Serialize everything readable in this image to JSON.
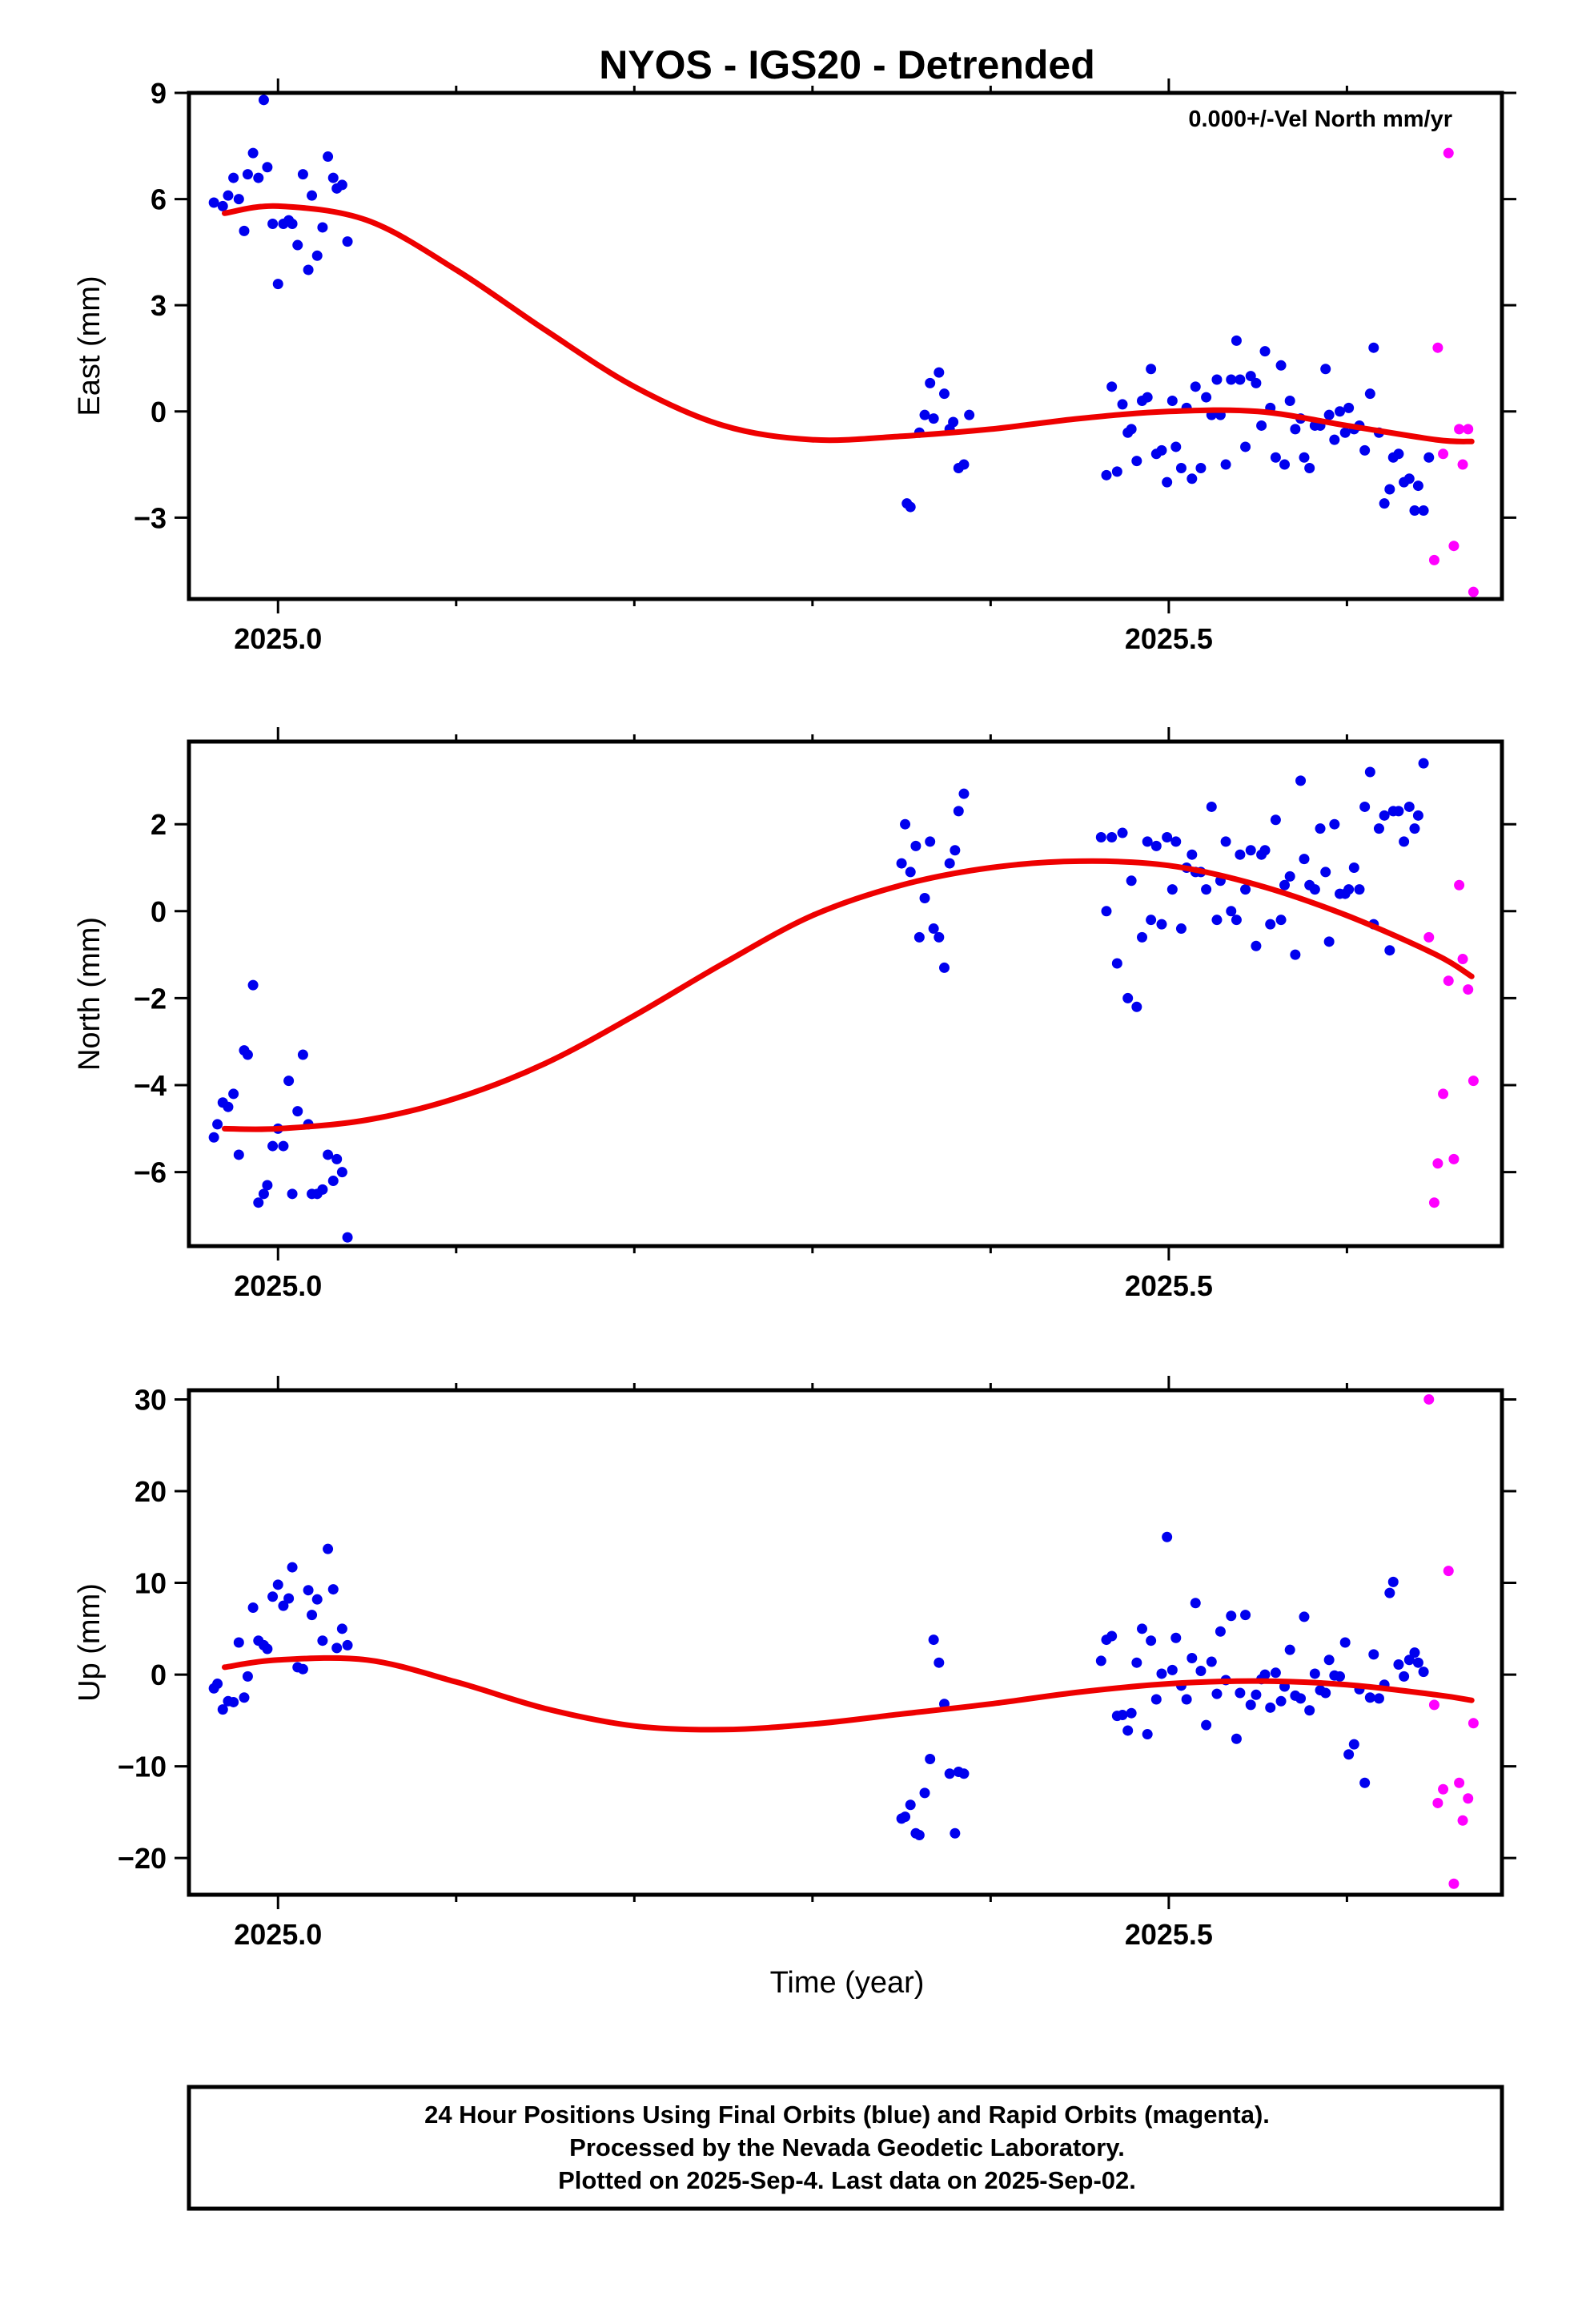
{
  "title": "NYOS - IGS20 - Detrended",
  "xlabel": "Time (year)",
  "footer": [
    "24 Hour Positions Using Final Orbits (blue) and Rapid Orbits (magenta).",
    "Processed by the Nevada Geodetic Laboratory.",
    "Plotted on 2025-Sep-4. Last data on 2025-Sep-02."
  ],
  "colors": {
    "final": "#0000ee",
    "rapid": "#ff00ff",
    "fit": "#ee0000",
    "frame": "#000000"
  },
  "chart_data": [
    {
      "type": "scatter",
      "ylabel": "East (mm)",
      "annotation": "0.000+/-Vel North mm/yr",
      "xlim": [
        2024.95,
        2025.687
      ],
      "ylim": [
        -5.3,
        9.0
      ],
      "xticks": [
        2025.0,
        2025.5
      ],
      "xtick_labels": [
        "2025.0",
        "2025.5"
      ],
      "xminor": [
        2025.1,
        2025.2,
        2025.3,
        2025.4,
        2025.6
      ],
      "yticks": [
        -3,
        0,
        3,
        6,
        9
      ],
      "ytick_labels": [
        "−3",
        "0",
        "3",
        "6",
        "9"
      ],
      "series": [
        {
          "kind": "final",
          "x": [
            2024.964,
            2024.969,
            2024.972,
            2024.975,
            2024.978,
            2024.981,
            2024.983,
            2024.986,
            2024.989,
            2024.992,
            2024.994,
            2024.997,
            2025.0,
            2025.003,
            2025.006,
            2025.008,
            2025.011,
            2025.014,
            2025.017,
            2025.019,
            2025.022,
            2025.025,
            2025.028,
            2025.031,
            2025.033,
            2025.036,
            2025.039,
            2025.353,
            2025.355,
            2025.36,
            2025.363,
            2025.366,
            2025.368,
            2025.371,
            2025.374,
            2025.377,
            2025.379,
            2025.382,
            2025.385,
            2025.388,
            2025.465,
            2025.468,
            2025.471,
            2025.474,
            2025.477,
            2025.479,
            2025.482,
            2025.485,
            2025.488,
            2025.49,
            2025.493,
            2025.496,
            2025.499,
            2025.502,
            2025.504,
            2025.507,
            2025.51,
            2025.513,
            2025.515,
            2025.518,
            2025.521,
            2025.524,
            2025.527,
            2025.529,
            2025.532,
            2025.535,
            2025.538,
            2025.54,
            2025.543,
            2025.546,
            2025.549,
            2025.552,
            2025.554,
            2025.557,
            2025.56,
            2025.563,
            2025.565,
            2025.568,
            2025.571,
            2025.574,
            2025.576,
            2025.579,
            2025.582,
            2025.585,
            2025.588,
            2025.59,
            2025.593,
            2025.596,
            2025.599,
            2025.601,
            2025.604,
            2025.607,
            2025.61,
            2025.613,
            2025.615,
            2025.618,
            2025.621,
            2025.624,
            2025.626,
            2025.629,
            2025.632,
            2025.635,
            2025.638,
            2025.64,
            2025.643,
            2025.646
          ],
          "y": [
            5.9,
            5.8,
            6.1,
            6.6,
            6.0,
            5.1,
            6.7,
            7.3,
            6.6,
            8.8,
            6.9,
            5.3,
            3.6,
            5.3,
            5.4,
            5.3,
            4.7,
            6.7,
            4.0,
            6.1,
            4.4,
            5.2,
            7.2,
            6.6,
            6.3,
            6.4,
            4.8,
            -2.6,
            -2.7,
            -0.6,
            -0.1,
            0.8,
            -0.2,
            1.1,
            0.5,
            -0.5,
            -0.3,
            -1.6,
            -1.5,
            -0.1,
            -1.8,
            0.7,
            -1.7,
            0.2,
            -0.6,
            -0.5,
            -1.4,
            0.3,
            0.4,
            1.2,
            -1.2,
            -1.1,
            -2.0,
            0.3,
            -1.0,
            -1.6,
            0.1,
            -1.9,
            0.7,
            -1.6,
            0.4,
            -0.1,
            0.9,
            -0.1,
            -1.5,
            0.9,
            2.0,
            0.9,
            -1.0,
            1.0,
            0.8,
            -0.4,
            1.7,
            0.1,
            -1.3,
            1.3,
            -1.5,
            0.3,
            -0.5,
            -0.2,
            -1.3,
            -1.6,
            -0.4,
            -0.4,
            1.2,
            -0.1,
            -0.8,
            0.0,
            -0.6,
            0.1,
            -0.5,
            -0.4,
            -1.1,
            0.5,
            1.8,
            -0.6,
            -2.6,
            -2.2,
            -1.3,
            -1.2,
            -2.0,
            -1.9,
            -2.8,
            -2.1,
            -2.8,
            -1.3
          ]
        },
        {
          "kind": "rapid",
          "x": [
            2025.649,
            2025.651,
            2025.654,
            2025.657,
            2025.66,
            2025.663,
            2025.665,
            2025.668,
            2025.671
          ],
          "y": [
            -4.2,
            1.8,
            -1.2,
            7.3,
            -3.8,
            -0.5,
            -1.5,
            -0.5,
            -5.1
          ]
        }
      ],
      "fit": {
        "x": [
          2024.97,
          2025.0,
          2025.05,
          2025.1,
          2025.15,
          2025.2,
          2025.25,
          2025.3,
          2025.35,
          2025.4,
          2025.45,
          2025.5,
          2025.55,
          2025.6,
          2025.65,
          2025.67
        ],
        "y": [
          5.6,
          5.8,
          5.4,
          4.0,
          2.3,
          0.7,
          -0.4,
          -0.8,
          -0.7,
          -0.5,
          -0.2,
          0.0,
          0.0,
          -0.4,
          -0.8,
          -0.85
        ]
      }
    },
    {
      "type": "scatter",
      "ylabel": "North (mm)",
      "xlim": [
        2024.95,
        2025.687
      ],
      "ylim": [
        -7.7,
        3.9
      ],
      "xticks": [
        2025.0,
        2025.5
      ],
      "xtick_labels": [
        "2025.0",
        "2025.5"
      ],
      "xminor": [
        2025.1,
        2025.2,
        2025.3,
        2025.4,
        2025.6
      ],
      "yticks": [
        -6,
        -4,
        -2,
        0,
        2
      ],
      "ytick_labels": [
        "−6",
        "−4",
        "−2",
        "0",
        "2"
      ],
      "series": [
        {
          "kind": "final",
          "x": [
            2024.964,
            2024.966,
            2024.969,
            2024.972,
            2024.975,
            2024.978,
            2024.981,
            2024.983,
            2024.986,
            2024.989,
            2024.992,
            2024.994,
            2024.997,
            2025.0,
            2025.003,
            2025.006,
            2025.008,
            2025.011,
            2025.014,
            2025.017,
            2025.019,
            2025.022,
            2025.025,
            2025.028,
            2025.031,
            2025.033,
            2025.036,
            2025.039,
            2025.35,
            2025.352,
            2025.355,
            2025.358,
            2025.36,
            2025.363,
            2025.366,
            2025.368,
            2025.371,
            2025.374,
            2025.377,
            2025.38,
            2025.382,
            2025.385,
            2025.462,
            2025.465,
            2025.468,
            2025.471,
            2025.474,
            2025.477,
            2025.479,
            2025.482,
            2025.485,
            2025.488,
            2025.49,
            2025.493,
            2025.496,
            2025.499,
            2025.502,
            2025.504,
            2025.507,
            2025.51,
            2025.513,
            2025.515,
            2025.518,
            2025.521,
            2025.524,
            2025.527,
            2025.529,
            2025.532,
            2025.535,
            2025.538,
            2025.54,
            2025.543,
            2025.546,
            2025.549,
            2025.552,
            2025.554,
            2025.557,
            2025.56,
            2025.563,
            2025.565,
            2025.568,
            2025.571,
            2025.574,
            2025.576,
            2025.579,
            2025.582,
            2025.585,
            2025.588,
            2025.59,
            2025.593,
            2025.596,
            2025.599,
            2025.601,
            2025.604,
            2025.607,
            2025.61,
            2025.613,
            2025.615,
            2025.618,
            2025.621,
            2025.624,
            2025.626,
            2025.629,
            2025.632,
            2025.635,
            2025.638,
            2025.64,
            2025.643
          ],
          "y": [
            -5.2,
            -4.9,
            -4.4,
            -4.5,
            -4.2,
            -5.6,
            -3.2,
            -3.3,
            -1.7,
            -6.7,
            -6.5,
            -6.3,
            -5.4,
            -5.0,
            -5.4,
            -3.9,
            -6.5,
            -4.6,
            -3.3,
            -4.9,
            -6.5,
            -6.5,
            -6.4,
            -5.6,
            -6.2,
            -5.7,
            -6.0,
            -7.5,
            1.1,
            2.0,
            0.9,
            1.5,
            -0.6,
            0.3,
            1.6,
            -0.4,
            -0.6,
            -1.3,
            1.1,
            1.4,
            2.3,
            2.7,
            1.7,
            0.0,
            1.7,
            -1.2,
            1.8,
            -2.0,
            0.7,
            -2.2,
            -0.6,
            1.6,
            -0.2,
            1.5,
            -0.3,
            1.7,
            0.5,
            1.6,
            -0.4,
            1.0,
            1.3,
            0.9,
            0.9,
            0.5,
            2.4,
            -0.2,
            0.7,
            1.6,
            0.0,
            -0.2,
            1.3,
            0.5,
            1.4,
            -0.8,
            1.3,
            1.4,
            -0.3,
            2.1,
            -0.2,
            0.6,
            0.8,
            -1.0,
            3.0,
            1.2,
            0.6,
            0.5,
            1.9,
            0.9,
            -0.7,
            2.0,
            0.4,
            0.4,
            0.5,
            1.0,
            0.5,
            2.4,
            3.2,
            -0.3,
            1.9,
            2.2,
            -0.9,
            2.3,
            2.3,
            1.6,
            2.4,
            1.9,
            2.2,
            3.4
          ]
        },
        {
          "kind": "rapid",
          "x": [
            2025.646,
            2025.649,
            2025.651,
            2025.654,
            2025.657,
            2025.66,
            2025.663,
            2025.665,
            2025.668,
            2025.671
          ],
          "y": [
            -0.6,
            -6.7,
            -5.8,
            -4.2,
            -1.6,
            -5.7,
            0.6,
            -1.1,
            -1.8,
            -3.9
          ]
        }
      ],
      "fit": {
        "x": [
          2024.97,
          2025.0,
          2025.05,
          2025.1,
          2025.15,
          2025.2,
          2025.25,
          2025.3,
          2025.35,
          2025.4,
          2025.45,
          2025.5,
          2025.55,
          2025.6,
          2025.65,
          2025.67
        ],
        "y": [
          -5.0,
          -5.0,
          -4.8,
          -4.3,
          -3.5,
          -2.4,
          -1.2,
          -0.1,
          0.6,
          1.0,
          1.15,
          1.05,
          0.6,
          -0.1,
          -1.0,
          -1.5
        ]
      }
    },
    {
      "type": "scatter",
      "ylabel": "Up (mm)",
      "xlim": [
        2024.95,
        2025.687
      ],
      "ylim": [
        -24.0,
        31.0
      ],
      "xticks": [
        2025.0,
        2025.5
      ],
      "xtick_labels": [
        "2025.0",
        "2025.5"
      ],
      "xminor": [
        2025.1,
        2025.2,
        2025.3,
        2025.4,
        2025.6
      ],
      "yticks": [
        -20,
        -10,
        0,
        10,
        20,
        30
      ],
      "ytick_labels": [
        "−20",
        "−10",
        "0",
        "10",
        "20",
        "30"
      ],
      "series": [
        {
          "kind": "final",
          "x": [
            2024.964,
            2024.966,
            2024.969,
            2024.972,
            2024.975,
            2024.978,
            2024.981,
            2024.983,
            2024.986,
            2024.989,
            2024.992,
            2024.994,
            2024.997,
            2025.0,
            2025.003,
            2025.006,
            2025.008,
            2025.011,
            2025.014,
            2025.017,
            2025.019,
            2025.022,
            2025.025,
            2025.028,
            2025.031,
            2025.033,
            2025.036,
            2025.039,
            2025.35,
            2025.352,
            2025.355,
            2025.358,
            2025.36,
            2025.363,
            2025.366,
            2025.368,
            2025.371,
            2025.374,
            2025.377,
            2025.38,
            2025.382,
            2025.385,
            2025.462,
            2025.465,
            2025.468,
            2025.471,
            2025.474,
            2025.477,
            2025.479,
            2025.482,
            2025.485,
            2025.488,
            2025.49,
            2025.493,
            2025.496,
            2025.499,
            2025.502,
            2025.504,
            2025.507,
            2025.51,
            2025.513,
            2025.515,
            2025.518,
            2025.521,
            2025.524,
            2025.527,
            2025.529,
            2025.532,
            2025.535,
            2025.538,
            2025.54,
            2025.543,
            2025.546,
            2025.549,
            2025.552,
            2025.554,
            2025.557,
            2025.56,
            2025.563,
            2025.565,
            2025.568,
            2025.571,
            2025.574,
            2025.576,
            2025.579,
            2025.582,
            2025.585,
            2025.588,
            2025.59,
            2025.593,
            2025.596,
            2025.599,
            2025.601,
            2025.604,
            2025.607,
            2025.61,
            2025.613,
            2025.615,
            2025.618,
            2025.621,
            2025.624,
            2025.626,
            2025.629,
            2025.632,
            2025.635,
            2025.638,
            2025.64,
            2025.643
          ],
          "y": [
            -1.5,
            -1.0,
            -3.8,
            -2.9,
            -3.0,
            3.5,
            -2.5,
            -0.2,
            7.3,
            3.7,
            3.2,
            2.8,
            8.5,
            9.8,
            7.5,
            8.3,
            11.7,
            0.8,
            0.6,
            9.2,
            6.5,
            8.2,
            3.7,
            13.7,
            9.3,
            2.9,
            5.0,
            3.2,
            -15.7,
            -15.5,
            -14.2,
            -17.3,
            -17.5,
            -12.9,
            -9.2,
            3.8,
            1.3,
            -3.2,
            -10.8,
            -17.3,
            -10.6,
            -10.8,
            1.5,
            3.8,
            4.2,
            -4.5,
            -4.4,
            -6.1,
            -4.2,
            1.3,
            5.0,
            -6.5,
            3.7,
            -2.7,
            0.1,
            15.0,
            0.5,
            4.0,
            -1.2,
            -2.7,
            1.8,
            7.8,
            0.4,
            -5.5,
            1.4,
            -2.1,
            4.7,
            -0.6,
            6.4,
            -7.0,
            -2.0,
            6.5,
            -3.3,
            -2.2,
            -0.5,
            0.0,
            -3.6,
            0.2,
            -2.9,
            -1.3,
            2.7,
            -2.3,
            -2.6,
            6.3,
            -3.9,
            0.1,
            -1.7,
            -2.0,
            1.6,
            -0.1,
            -0.2,
            3.5,
            -8.7,
            -7.6,
            -1.6,
            -11.8,
            -2.5,
            2.2,
            -2.6,
            -1.1,
            8.9,
            10.1,
            1.1,
            -0.2,
            1.6,
            2.4,
            1.3,
            0.3
          ]
        },
        {
          "kind": "rapid",
          "x": [
            2025.646,
            2025.649,
            2025.651,
            2025.654,
            2025.657,
            2025.66,
            2025.663,
            2025.665,
            2025.668,
            2025.671
          ],
          "y": [
            30.0,
            -3.3,
            -14.0,
            -12.5,
            11.3,
            -22.8,
            -11.8,
            -15.9,
            -13.5,
            -5.3
          ]
        }
      ],
      "fit": {
        "x": [
          2024.97,
          2025.0,
          2025.05,
          2025.1,
          2025.15,
          2025.2,
          2025.25,
          2025.3,
          2025.35,
          2025.4,
          2025.45,
          2025.5,
          2025.55,
          2025.6,
          2025.65,
          2025.67
        ],
        "y": [
          0.8,
          1.6,
          1.6,
          -0.8,
          -3.7,
          -5.6,
          -6.0,
          -5.4,
          -4.3,
          -3.2,
          -1.9,
          -1.0,
          -0.7,
          -1.1,
          -2.2,
          -2.8
        ]
      }
    }
  ]
}
